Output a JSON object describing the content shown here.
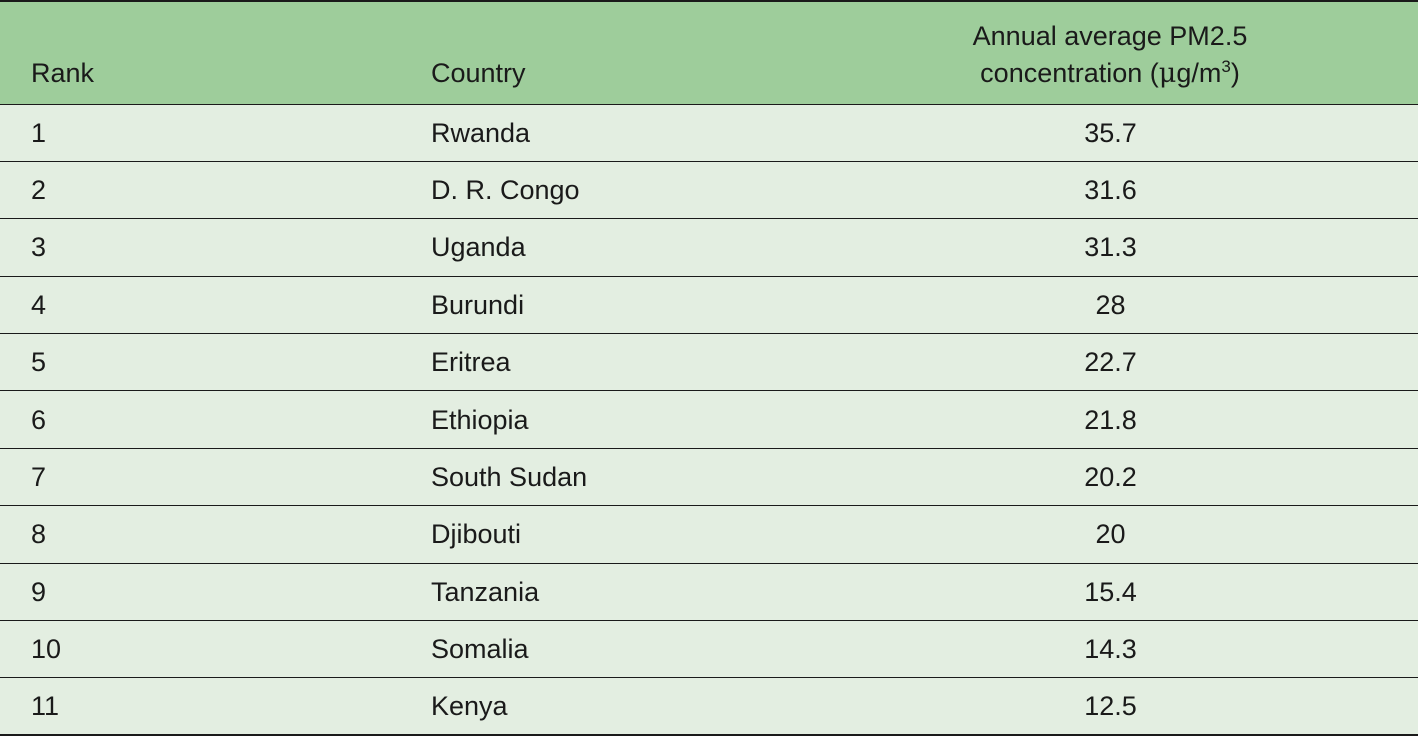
{
  "table": {
    "headers": {
      "rank": "Rank",
      "country": "Country",
      "value_line1": "Annual average PM2.5",
      "value_line2_prefix": "concentration (",
      "value_unit_mu": "μ",
      "value_unit_rest": "g/m",
      "value_unit_exp": "3",
      "value_line2_suffix": ")"
    },
    "rows": [
      {
        "rank": "1",
        "country": "Rwanda",
        "value": "35.7"
      },
      {
        "rank": "2",
        "country": "D. R. Congo",
        "value": "31.6"
      },
      {
        "rank": "3",
        "country": "Uganda",
        "value": "31.3"
      },
      {
        "rank": "4",
        "country": "Burundi",
        "value": "28"
      },
      {
        "rank": "5",
        "country": "Eritrea",
        "value": "22.7"
      },
      {
        "rank": "6",
        "country": "Ethiopia",
        "value": "21.8"
      },
      {
        "rank": "7",
        "country": "South Sudan",
        "value": "20.2"
      },
      {
        "rank": "8",
        "country": "Djibouti",
        "value": "20"
      },
      {
        "rank": "9",
        "country": "Tanzania",
        "value": "15.4"
      },
      {
        "rank": "10",
        "country": "Somalia",
        "value": "14.3"
      },
      {
        "rank": "11",
        "country": "Kenya",
        "value": "12.5"
      }
    ],
    "colors": {
      "header_bg": "#9ecd9b",
      "row_bg": "#e3eee1",
      "rule": "#1a1a1a"
    }
  }
}
